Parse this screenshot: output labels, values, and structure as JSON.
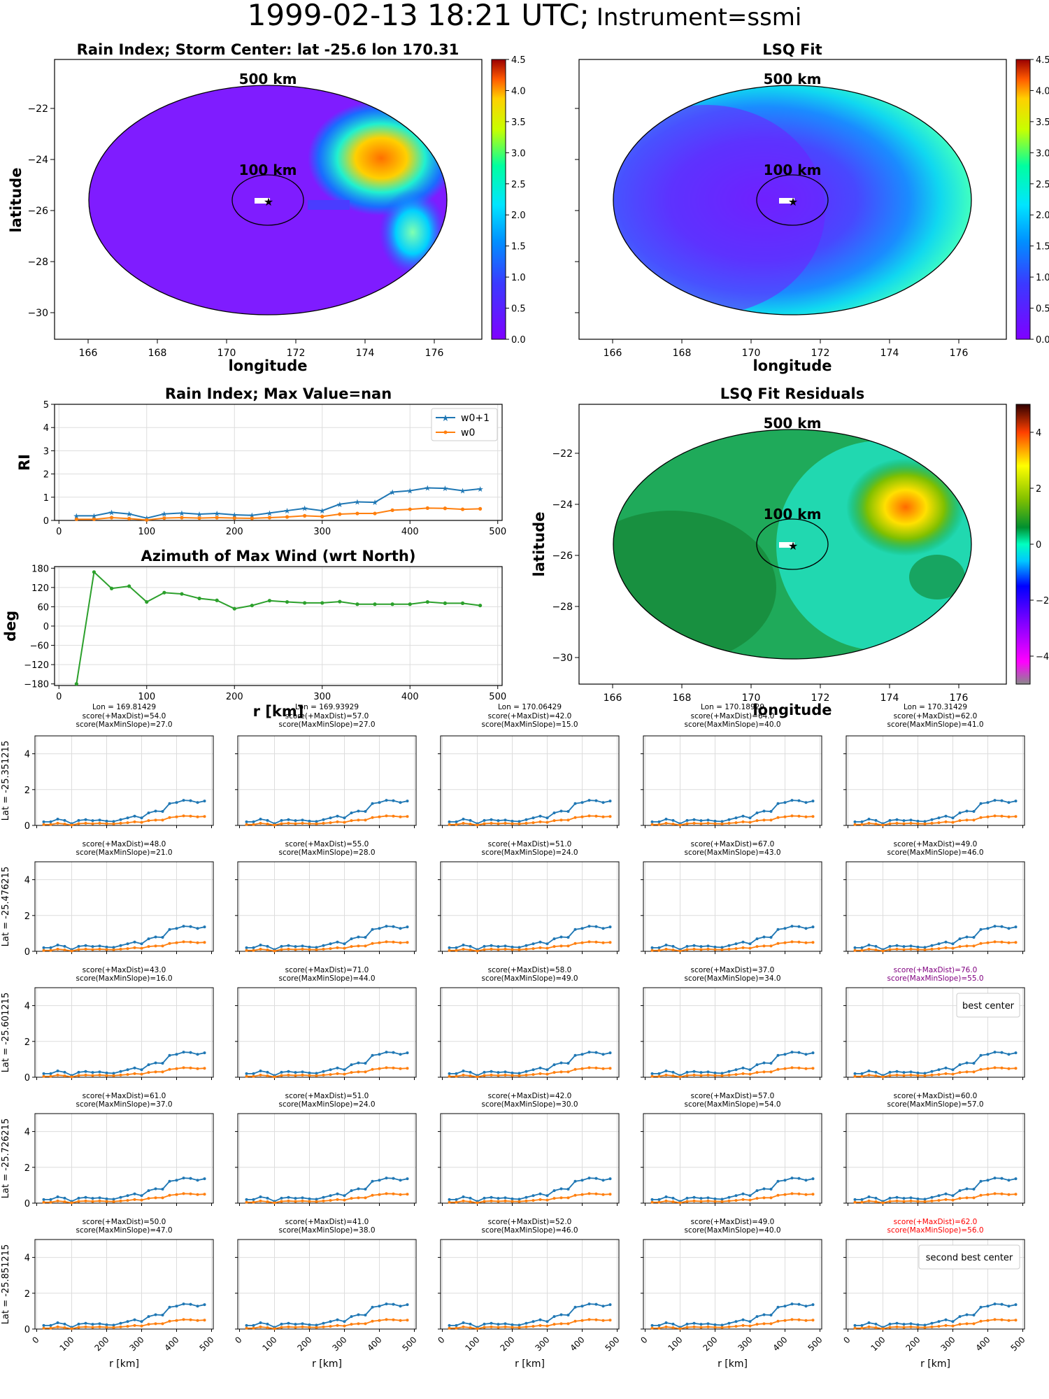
{
  "suptitle": {
    "date": "1999-02-13 18:21 UTC;",
    "instrument": "Instrument=ssmi"
  },
  "colors": {
    "w0p1": "#1f77b4",
    "w0": "#ff7f0e",
    "azimuth": "#2ca02c",
    "grid": "#dddddd",
    "purple": "#800080",
    "red": "#ff0000"
  },
  "maps": {
    "rain": {
      "title": "Rain Index; Storm Center: lat -25.6 lon 170.31"
    },
    "lsq": {
      "title": "LSQ Fit"
    },
    "resid": {
      "title": "LSQ Fit Residuals"
    },
    "ring_labels": [
      "500 km",
      "100 km"
    ],
    "xlabel": "longitude",
    "ylabel": "latitude",
    "xticks": [
      "166",
      "168",
      "170",
      "172",
      "174",
      "176"
    ],
    "yticks": [
      "−22",
      "−24",
      "−26",
      "−28",
      "−30"
    ],
    "cbar_ticks": [
      "0.0",
      "0.5",
      "1.0",
      "1.5",
      "2.0",
      "2.5",
      "3.0",
      "3.5",
      "4.0",
      "4.5"
    ],
    "resid_cbar_ticks": [
      "4",
      "2",
      "0",
      "−2",
      "−4"
    ]
  },
  "ri_chart": {
    "title": "Rain Index; Max Value=nan",
    "ylabel": "RI",
    "yticks": [
      "0",
      "1",
      "2",
      "3",
      "4",
      "5"
    ],
    "xticks": [
      "0",
      "100",
      "200",
      "300",
      "400",
      "500"
    ],
    "legend": [
      "w0+1",
      "w0"
    ]
  },
  "az_chart": {
    "title": "Azimuth of Max Wind (wrt North)",
    "ylabel": "deg",
    "xlabel": "r [km]",
    "yticks": [
      "180",
      "120",
      "60",
      "0",
      "−60",
      "−120",
      "−180"
    ],
    "xticks": [
      "0",
      "100",
      "200",
      "300",
      "400",
      "500"
    ]
  },
  "chart_data": [
    {
      "type": "line",
      "title": "Rain Index; Max Value=nan",
      "xlabel": "",
      "ylabel": "RI",
      "xlim": [
        -5,
        505
      ],
      "ylim": [
        0,
        5
      ],
      "grid": true,
      "legend": "top-right",
      "x": [
        20,
        40,
        60,
        80,
        100,
        120,
        140,
        160,
        180,
        200,
        220,
        240,
        260,
        280,
        300,
        320,
        340,
        360,
        380,
        400,
        420,
        440,
        460,
        480
      ],
      "series": [
        {
          "name": "w0+1",
          "values": [
            0.2,
            0.2,
            0.35,
            0.28,
            0.1,
            0.28,
            0.32,
            0.27,
            0.3,
            0.24,
            0.22,
            0.32,
            0.42,
            0.52,
            0.42,
            0.7,
            0.8,
            0.78,
            1.22,
            1.28,
            1.4,
            1.38,
            1.28,
            1.36
          ]
        },
        {
          "name": "w0",
          "values": [
            0.05,
            0.05,
            0.12,
            0.08,
            0.02,
            0.1,
            0.12,
            0.1,
            0.12,
            0.1,
            0.09,
            0.12,
            0.15,
            0.2,
            0.17,
            0.27,
            0.3,
            0.3,
            0.44,
            0.48,
            0.53,
            0.52,
            0.48,
            0.5
          ]
        }
      ]
    },
    {
      "type": "line",
      "title": "Azimuth of Max Wind (wrt North)",
      "xlabel": "r [km]",
      "ylabel": "deg",
      "xlim": [
        -5,
        505
      ],
      "ylim": [
        -185,
        185
      ],
      "grid": true,
      "x": [
        20,
        40,
        60,
        80,
        100,
        120,
        140,
        160,
        180,
        200,
        220,
        240,
        260,
        280,
        300,
        320,
        340,
        360,
        380,
        400,
        420,
        440,
        460,
        480
      ],
      "series": [
        {
          "name": "",
          "values": [
            -180,
            168,
            117,
            124,
            75,
            104,
            100,
            86,
            80,
            54,
            64,
            79,
            75,
            72,
            72,
            76,
            68,
            68,
            68,
            68,
            75,
            71,
            71,
            64
          ]
        }
      ]
    }
  ],
  "grid_panels": {
    "col_lons": [
      "Lon = 169.81429",
      "Lon = 169.93929",
      "Lon = 170.06429",
      "Lon = 170.18929",
      "Lon = 170.31429"
    ],
    "row_lats": [
      "Lat = -25.351215",
      "Lat = -25.476215",
      "Lat = -25.601215",
      "Lat = -25.726215",
      "Lat = -25.851215"
    ],
    "scores": [
      [
        [
          "score(+MaxDist)=54.0",
          "score(MaxMinSlope)=27.0"
        ],
        [
          "score(+MaxDist)=57.0",
          "score(MaxMinSlope)=27.0"
        ],
        [
          "score(+MaxDist)=42.0",
          "score(MaxMinSlope)=15.0"
        ],
        [
          "score(+MaxDist)=64.0",
          "score(MaxMinSlope)=40.0"
        ],
        [
          "score(+MaxDist)=62.0",
          "score(MaxMinSlope)=41.0"
        ]
      ],
      [
        [
          "score(+MaxDist)=48.0",
          "score(MaxMinSlope)=21.0"
        ],
        [
          "score(+MaxDist)=55.0",
          "score(MaxMinSlope)=28.0"
        ],
        [
          "score(+MaxDist)=51.0",
          "score(MaxMinSlope)=24.0"
        ],
        [
          "score(+MaxDist)=67.0",
          "score(MaxMinSlope)=43.0"
        ],
        [
          "score(+MaxDist)=49.0",
          "score(MaxMinSlope)=46.0"
        ]
      ],
      [
        [
          "score(+MaxDist)=43.0",
          "score(MaxMinSlope)=16.0"
        ],
        [
          "score(+MaxDist)=71.0",
          "score(MaxMinSlope)=44.0"
        ],
        [
          "score(+MaxDist)=58.0",
          "score(MaxMinSlope)=49.0"
        ],
        [
          "score(+MaxDist)=37.0",
          "score(MaxMinSlope)=34.0"
        ],
        [
          "score(+MaxDist)=76.0",
          "score(MaxMinSlope)=55.0"
        ]
      ],
      [
        [
          "score(+MaxDist)=61.0",
          "score(MaxMinSlope)=37.0"
        ],
        [
          "score(+MaxDist)=51.0",
          "score(MaxMinSlope)=24.0"
        ],
        [
          "score(+MaxDist)=42.0",
          "score(MaxMinSlope)=30.0"
        ],
        [
          "score(+MaxDist)=57.0",
          "score(MaxMinSlope)=54.0"
        ],
        [
          "score(+MaxDist)=60.0",
          "score(MaxMinSlope)=57.0"
        ]
      ],
      [
        [
          "score(+MaxDist)=50.0",
          "score(MaxMinSlope)=47.0"
        ],
        [
          "score(+MaxDist)=41.0",
          "score(MaxMinSlope)=38.0"
        ],
        [
          "score(+MaxDist)=52.0",
          "score(MaxMinSlope)=46.0"
        ],
        [
          "score(+MaxDist)=49.0",
          "score(MaxMinSlope)=40.0"
        ],
        [
          "score(+MaxDist)=62.0",
          "score(MaxMinSlope)=56.0"
        ]
      ]
    ],
    "legend_best": "best center",
    "legend_second": "second best center",
    "xlabel": "r [km]",
    "xticks": [
      "0",
      "100",
      "200",
      "300",
      "400",
      "500"
    ],
    "yticks": [
      "0",
      "2",
      "4"
    ]
  }
}
